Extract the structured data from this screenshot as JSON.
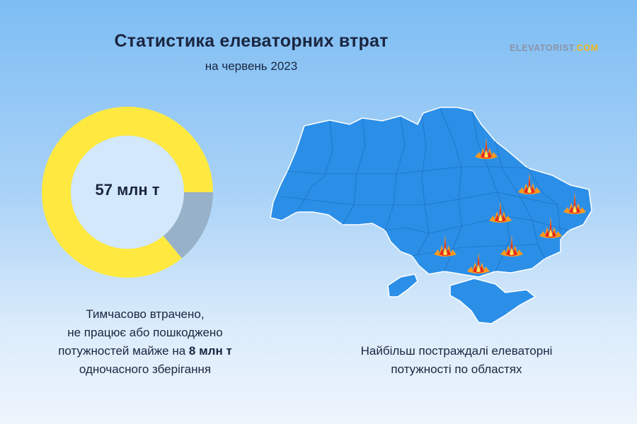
{
  "header": {
    "title": "Статистика елеваторних втрат",
    "subtitle": "на червень 2023",
    "brand_main": "ELEVATORIST",
    "brand_suffix": ".COM"
  },
  "chart_data": {
    "type": "pie",
    "center_label": "57 млн т",
    "slices": [
      {
        "value": 49,
        "color": "#ffe940"
      },
      {
        "value": 8,
        "color": "#97b1c8"
      }
    ]
  },
  "captions": {
    "left_line1": "Тимчасово втрачено,",
    "left_line2": "не працює або пошкоджено",
    "left_line3_start": "потужностей майже на ",
    "left_line3_bold": "8 млн т",
    "left_line4": "одночасного зберігання",
    "right_line1": "Найбільш постраждалі елеваторні",
    "right_line2": "потужності по областях"
  },
  "map": {
    "fill_color": "#2b8fe8",
    "border_color": "#1f75c4",
    "damaged_regions": [
      "Харківська",
      "Луганська",
      "Донецька",
      "Дніпропетровська",
      "Запорізька",
      "Херсонська",
      "Миколаївська",
      "Сумська"
    ]
  }
}
